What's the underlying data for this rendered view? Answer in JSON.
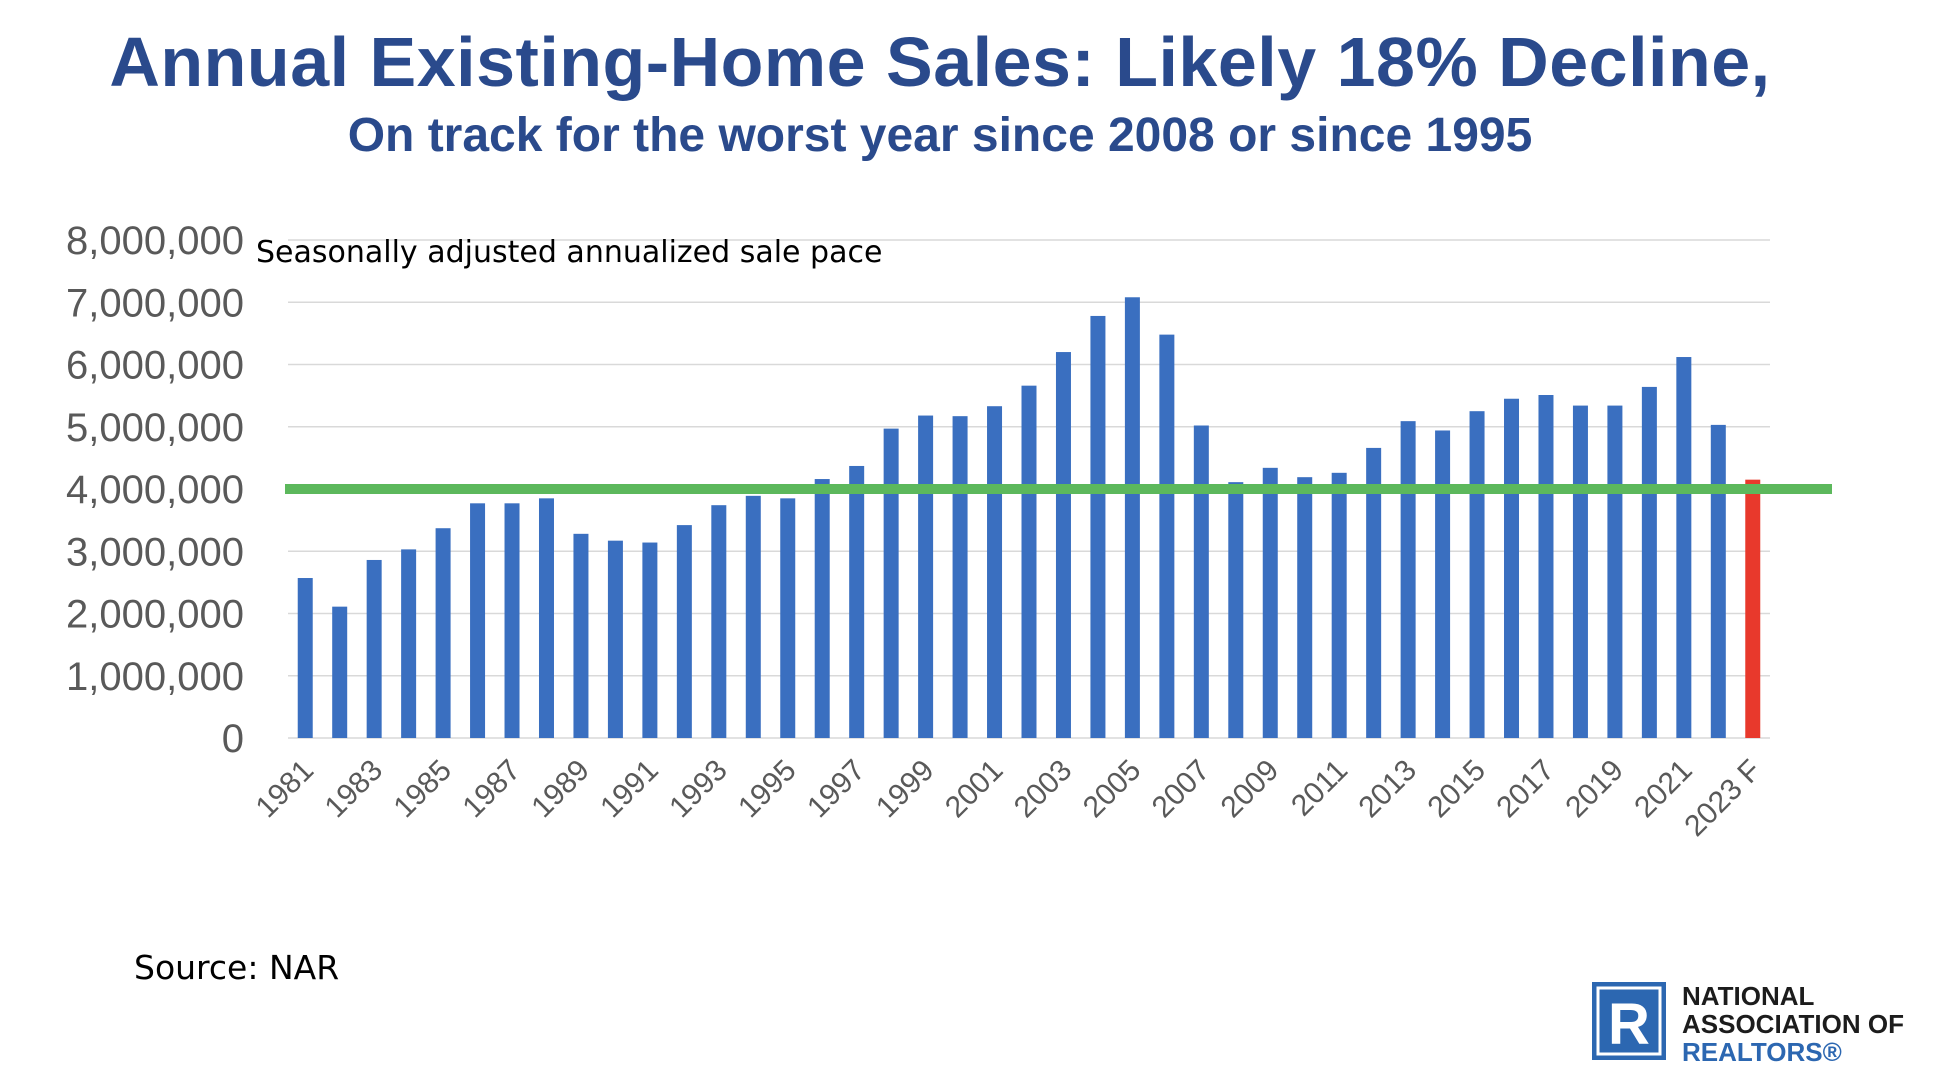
{
  "header": {
    "title": "Annual Existing-Home Sales:  Likely 18% Decline,",
    "subtitle": "On track for the worst year since 2008 or since 1995"
  },
  "footer": {
    "source": "Source: NAR",
    "logo_line1": "NATIONAL",
    "logo_line2": "ASSOCIATION OF",
    "logo_line3": "REALTORS®",
    "logo_letter": "R"
  },
  "colors": {
    "bar": "#3a6fc0",
    "forecast_bar": "#e8392c",
    "reference_line": "#5cb85c",
    "title": "#2a4a8c",
    "grid": "#d9d9d9",
    "axis_text": "#595959"
  },
  "chart_data": {
    "type": "bar",
    "title": "",
    "annotation": "Seasonally adjusted annualized sale pace",
    "xlabel": "",
    "ylabel": "",
    "ylim": [
      0,
      8000000
    ],
    "yticks": [
      0,
      1000000,
      2000000,
      3000000,
      4000000,
      5000000,
      6000000,
      7000000,
      8000000
    ],
    "ytick_labels": [
      "0",
      "1,000,000",
      "2,000,000",
      "3,000,000",
      "4,000,000",
      "5,000,000",
      "6,000,000",
      "7,000,000",
      "8,000,000"
    ],
    "grid": true,
    "categories": [
      "1981",
      "1982",
      "1983",
      "1984",
      "1985",
      "1986",
      "1987",
      "1988",
      "1989",
      "1990",
      "1991",
      "1992",
      "1993",
      "1994",
      "1995",
      "1996",
      "1997",
      "1998",
      "1999",
      "2000",
      "2001",
      "2002",
      "2003",
      "2004",
      "2005",
      "2006",
      "2007",
      "2008",
      "2009",
      "2010",
      "2011",
      "2012",
      "2013",
      "2014",
      "2015",
      "2016",
      "2017",
      "2018",
      "2019",
      "2020",
      "2021",
      "2022",
      "2023 F"
    ],
    "tick_labels_shown": [
      "1981",
      "1983",
      "1985",
      "1987",
      "1989",
      "1991",
      "1993",
      "1995",
      "1997",
      "1999",
      "2001",
      "2003",
      "2005",
      "2007",
      "2009",
      "2011",
      "2013",
      "2015",
      "2017",
      "2019",
      "2021",
      "2023 F"
    ],
    "values": [
      2570000,
      2110000,
      2860000,
      3030000,
      3370000,
      3770000,
      3770000,
      3850000,
      3280000,
      3170000,
      3140000,
      3420000,
      3740000,
      3890000,
      3850000,
      4160000,
      4370000,
      4970000,
      5180000,
      5170000,
      5330000,
      5660000,
      6200000,
      6780000,
      7080000,
      6480000,
      5020000,
      4110000,
      4340000,
      4190000,
      4260000,
      4660000,
      5090000,
      4940000,
      5250000,
      5450000,
      5510000,
      5340000,
      5340000,
      5640000,
      6120000,
      5030000,
      4150000
    ],
    "forecast_category": "2023 F",
    "reference_line": 4000000
  }
}
